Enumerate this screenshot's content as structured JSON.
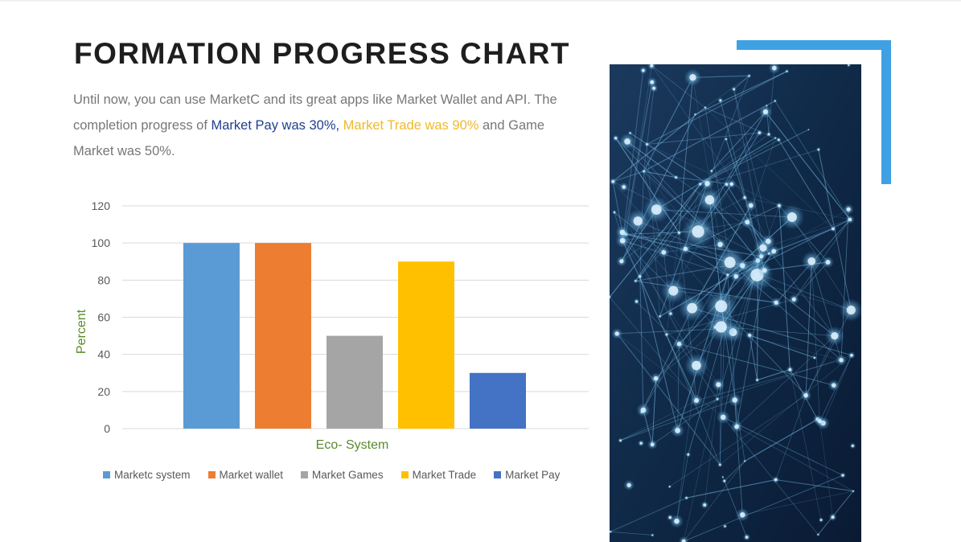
{
  "slide": {
    "title": "FORMATION PROGRESS CHART",
    "description": {
      "part1": "Until now, you can use MarketC and its great apps like Market Wallet and API. The completion progress of ",
      "highlight_pay": "Market Pay was 30%,",
      "part2": " ",
      "highlight_trade": "Market Trade was 90%",
      "part3": " and Game Market was 50%."
    },
    "highlight_colors": {
      "pay": "#1f3f8f",
      "trade": "#f0b928"
    },
    "accent_color": "#3ea1e3",
    "image": {
      "icon": "network-nodes-photo"
    }
  },
  "chart_data": {
    "type": "bar",
    "title": "",
    "xlabel": "Eco- System",
    "ylabel": "Percent",
    "ylim": [
      0,
      120
    ],
    "yticks": [
      0,
      20,
      40,
      60,
      80,
      100,
      120
    ],
    "grid": true,
    "legend_position": "bottom",
    "series": [
      {
        "name": "Marketc system",
        "value": 100,
        "color": "#5b9bd5"
      },
      {
        "name": "Market wallet",
        "value": 100,
        "color": "#ed7d31"
      },
      {
        "name": "Market Games",
        "value": 50,
        "color": "#a5a5a5"
      },
      {
        "name": "Market Trade",
        "value": 90,
        "color": "#ffc000"
      },
      {
        "name": "Market Pay",
        "value": 30,
        "color": "#4472c4"
      }
    ],
    "axis_label_color": "#5a8a2e"
  }
}
